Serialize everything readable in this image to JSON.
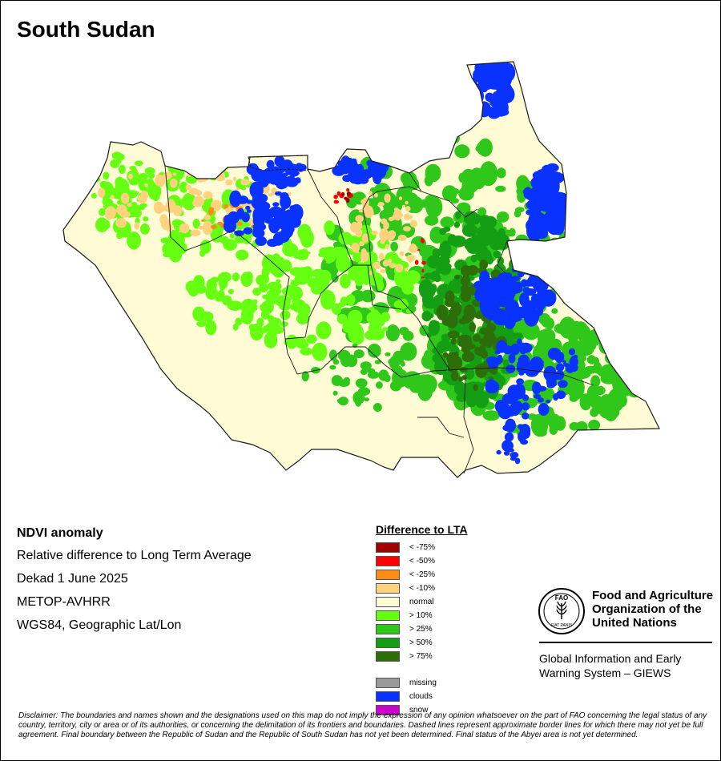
{
  "map": {
    "title": "South Sudan",
    "colors": {
      "boundary": "#1a1a1a",
      "normal": "#FFFBD5",
      "gt10": "#66FF11",
      "gt25": "#2EC71A",
      "gt50": "#139E13",
      "gt75": "#2E6E0A",
      "lt10": "#FFD280",
      "lt25": "#FF8C19",
      "lt50": "#FF0000",
      "lt75": "#A00000",
      "clouds": "#0A32FF"
    }
  },
  "info": {
    "heading": "NDVI anomaly",
    "lines": [
      "Relative difference to Long Term Average",
      "Dekad 1 June 2025",
      "METOP-AVHRR",
      "WGS84, Geographic Lat/Lon"
    ]
  },
  "legend": {
    "title": "Difference to LTA",
    "items": [
      {
        "label": "< -75%",
        "color": "#A00000"
      },
      {
        "label": "< -50%",
        "color": "#FF0000"
      },
      {
        "label": "< -25%",
        "color": "#FF8C19"
      },
      {
        "label": "< -10%",
        "color": "#FFD280"
      },
      {
        "label": "normal",
        "color": "#FFFBD5"
      },
      {
        "label": "> 10%",
        "color": "#66FF11"
      },
      {
        "label": "> 25%",
        "color": "#2EC71A"
      },
      {
        "label": "> 50%",
        "color": "#139E13"
      },
      {
        "label": "> 75%",
        "color": "#2E6E0A"
      }
    ],
    "extra_items": [
      {
        "label": "missing",
        "color": "#999999"
      },
      {
        "label": "clouds",
        "color": "#0A32FF"
      },
      {
        "label": "snow",
        "color": "#CC00CC"
      }
    ]
  },
  "logo": {
    "emblem_text": "FAO",
    "emblem_motto": "FIAT PANIS",
    "org_name": [
      "Food and Agriculture",
      "Organization of the",
      "United Nations"
    ],
    "system_name": [
      "Global Information and Early",
      "Warning System – GIEWS"
    ]
  },
  "disclaimer": "Disclaimer: The boundaries and names shown and the designations used on this map do not imply the expression of any opinion whatsoever on the part of FAO concerning the legal status of any country, territory, city or area or of its authorities, or concerning the delimitation of its frontiers and boundaries. Dashed lines represent approximate border lines for which there may not yet be full agreement.  Final boundary between the Republic of Sudan and the Republic of South Sudan has not yet been determined. Final status of the Abyei area is not yet determined."
}
